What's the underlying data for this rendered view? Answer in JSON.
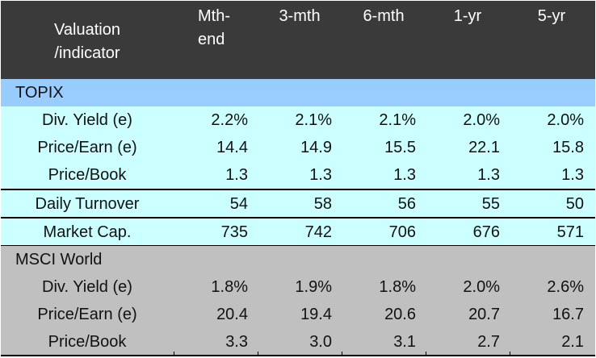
{
  "header": {
    "indicator_line1": "Valuation",
    "indicator_line2": "/indicator",
    "col1_line1": "Mth-",
    "col1_line2": "end",
    "col2": "3-mth",
    "col3": "6-mth",
    "col4": "1-yr",
    "col5": "5-yr"
  },
  "topix": {
    "section_label": "TOPIX",
    "rows": [
      {
        "label": "Div. Yield (e)",
        "values": [
          "2.2%",
          "2.1%",
          "2.1%",
          "2.0%",
          "2.0%"
        ]
      },
      {
        "label": "Price/Earn (e)",
        "values": [
          "14.4",
          "14.9",
          "15.5",
          "22.1",
          "15.8"
        ]
      },
      {
        "label": "Price/Book",
        "values": [
          "1.3",
          "1.3",
          "1.3",
          "1.3",
          "1.3"
        ]
      },
      {
        "label": "Daily Turnover",
        "values": [
          "54",
          "58",
          "56",
          "55",
          "50"
        ]
      },
      {
        "label": "Market Cap.",
        "values": [
          "735",
          "742",
          "706",
          "676",
          "571"
        ]
      }
    ]
  },
  "msci": {
    "section_label": "MSCI World",
    "rows": [
      {
        "label": "Div. Yield (e)",
        "values": [
          "1.8%",
          "1.9%",
          "1.8%",
          "2.0%",
          "2.6%"
        ]
      },
      {
        "label": "Price/Earn (e)",
        "values": [
          "20.4",
          "19.4",
          "20.6",
          "20.7",
          "16.7"
        ]
      },
      {
        "label": "Price/Book",
        "values": [
          "3.3",
          "3.0",
          "3.1",
          "2.7",
          "2.1"
        ]
      }
    ]
  },
  "colors": {
    "header_bg": "#3a3a3a",
    "topix_section_bg": "#99ccff",
    "topix_row_bg": "#ccffff",
    "msci_bg": "#c0c0c0"
  }
}
